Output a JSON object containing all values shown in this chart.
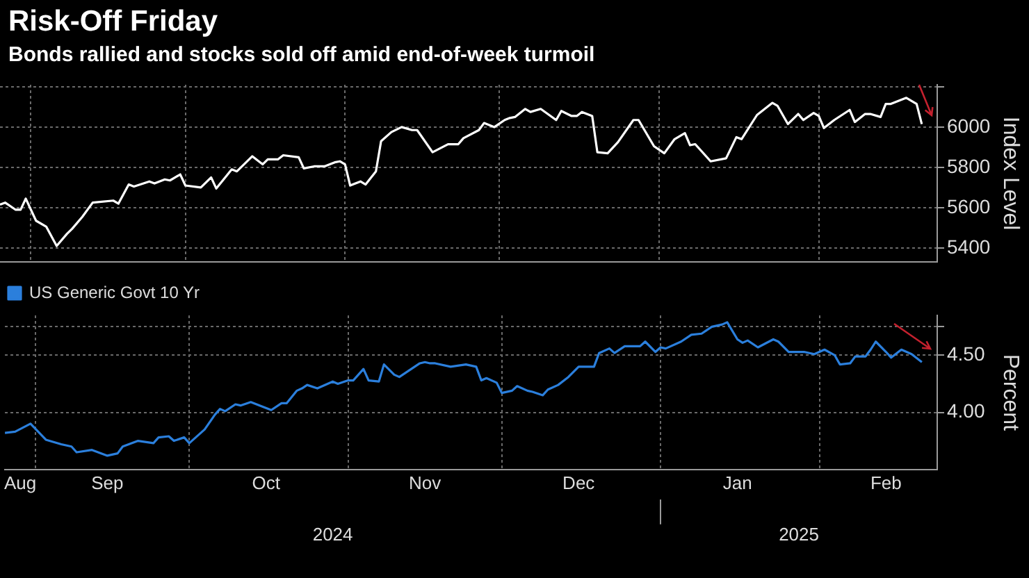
{
  "chart_data": [
    {
      "type": "line",
      "title": "Risk-Off Friday",
      "subtitle": "Bonds rallied and stocks sold off amid end-of-week turmoil",
      "ylabel": "Index Level",
      "grid": true,
      "tick_labels": "y",
      "x": [
        "2024-08-26",
        "2024-08-27",
        "2024-08-29",
        "2024-08-30",
        "2024-08-31",
        "2024-09-02",
        "2024-09-04",
        "2024-09-06",
        "2024-09-08",
        "2024-09-09",
        "2024-09-11",
        "2024-09-13",
        "2024-09-17",
        "2024-09-18",
        "2024-09-20",
        "2024-09-21",
        "2024-09-24",
        "2024-09-25",
        "2024-09-27",
        "2024-09-28",
        "2024-09-30",
        "2024-10-01",
        "2024-10-04",
        "2024-10-06",
        "2024-10-07",
        "2024-10-10",
        "2024-10-11",
        "2024-10-14",
        "2024-10-16",
        "2024-10-17",
        "2024-10-19",
        "2024-10-20",
        "2024-10-23",
        "2024-10-24",
        "2024-10-26",
        "2024-10-28",
        "2024-10-30",
        "2024-10-31",
        "2024-11-01",
        "2024-11-02",
        "2024-11-04",
        "2024-11-05",
        "2024-11-07",
        "2024-11-08",
        "2024-11-10",
        "2024-11-12",
        "2024-11-14",
        "2024-11-15",
        "2024-11-18",
        "2024-11-21",
        "2024-11-23",
        "2024-11-24",
        "2024-11-27",
        "2024-11-28",
        "2024-11-30",
        "2024-12-02",
        "2024-12-03",
        "2024-12-04",
        "2024-12-06",
        "2024-12-07",
        "2024-12-09",
        "2024-12-12",
        "2024-12-13",
        "2024-12-15",
        "2024-12-16",
        "2024-12-17",
        "2024-12-19",
        "2024-12-20",
        "2024-12-22",
        "2024-12-24",
        "2024-12-27",
        "2024-12-28",
        "2024-12-31",
        "2025-01-02",
        "2025-01-04",
        "2025-01-06",
        "2025-01-07",
        "2025-01-08",
        "2025-01-11",
        "2025-01-14",
        "2025-01-16",
        "2025-01-17",
        "2025-01-20",
        "2025-01-23",
        "2025-01-24",
        "2025-01-26",
        "2025-01-28",
        "2025-01-29",
        "2025-01-31",
        "2025-02-01",
        "2025-02-02",
        "2025-02-04",
        "2025-02-07",
        "2025-02-08",
        "2025-02-10",
        "2025-02-11",
        "2025-02-13",
        "2025-02-14",
        "2025-02-15",
        "2025-02-18",
        "2025-02-20",
        "2025-02-21"
      ],
      "series": [
        {
          "color": "#ffffff",
          "values": [
            5615,
            5625,
            5590,
            5590,
            5645,
            5535,
            5505,
            5410,
            5470,
            5495,
            5555,
            5625,
            5635,
            5620,
            5715,
            5705,
            5730,
            5720,
            5740,
            5735,
            5765,
            5710,
            5700,
            5750,
            5695,
            5790,
            5780,
            5855,
            5815,
            5840,
            5840,
            5860,
            5850,
            5795,
            5805,
            5805,
            5825,
            5830,
            5815,
            5710,
            5730,
            5715,
            5780,
            5930,
            5975,
            6000,
            5985,
            5985,
            5875,
            5915,
            5915,
            5945,
            5985,
            6020,
            6000,
            6035,
            6045,
            6050,
            6090,
            6075,
            6090,
            6035,
            6080,
            6055,
            6055,
            6075,
            6055,
            5875,
            5870,
            5925,
            6035,
            6035,
            5905,
            5870,
            5940,
            5970,
            5910,
            5915,
            5830,
            5845,
            5950,
            5940,
            6060,
            6120,
            6105,
            6015,
            6065,
            6035,
            6070,
            6055,
            5995,
            6035,
            6085,
            6025,
            6065,
            6065,
            6050,
            6115,
            6115,
            6145,
            6115,
            6015
          ]
        }
      ],
      "xlim": [
        "2024-08-26",
        "2025-02-24"
      ],
      "xticks": [
        {
          "value": "2024-09-01",
          "label": null
        },
        {
          "value": "2024-10-01",
          "label": null
        },
        {
          "value": "2024-11-01",
          "label": null
        },
        {
          "value": "2024-12-01",
          "label": null
        },
        {
          "value": "2025-01-01",
          "label": null
        },
        {
          "value": "2025-02-01",
          "label": null
        }
      ],
      "ylim": [
        5330,
        6210
      ],
      "yticks": [
        5400,
        5600,
        5800,
        6000,
        {
          "value": 6200,
          "label": null
        }
      ]
    },
    {
      "type": "line",
      "ylabel": "Percent",
      "grid": true,
      "legend": "top left",
      "x2lim": [
        "2024-08-26",
        "2025-02-24"
      ],
      "x2ticks": [
        {
          "value": "2024-10-29",
          "label": "2024"
        },
        {
          "value": "2025-01-01",
          "label": null
        },
        {
          "value": "2025-01-28",
          "label": "2025"
        }
      ],
      "x": [
        "2024-08-26",
        "2024-08-28",
        "2024-08-31",
        "2024-09-03",
        "2024-09-06",
        "2024-09-08",
        "2024-09-09",
        "2024-09-12",
        "2024-09-15",
        "2024-09-17",
        "2024-09-18",
        "2024-09-21",
        "2024-09-24",
        "2024-09-25",
        "2024-09-27",
        "2024-09-28",
        "2024-09-30",
        "2024-10-01",
        "2024-10-04",
        "2024-10-06",
        "2024-10-07",
        "2024-10-08",
        "2024-10-10",
        "2024-10-11",
        "2024-10-13",
        "2024-10-17",
        "2024-10-19",
        "2024-10-20",
        "2024-10-22",
        "2024-10-23",
        "2024-10-24",
        "2024-10-26",
        "2024-10-29",
        "2024-10-30",
        "2024-11-01",
        "2024-11-02",
        "2024-11-04",
        "2024-11-05",
        "2024-11-07",
        "2024-11-08",
        "2024-11-10",
        "2024-11-11",
        "2024-11-15",
        "2024-11-16",
        "2024-11-17",
        "2024-11-18",
        "2024-11-21",
        "2024-11-24",
        "2024-11-26",
        "2024-11-27",
        "2024-11-28",
        "2024-11-30",
        "2024-12-01",
        "2024-12-03",
        "2024-12-04",
        "2024-12-06",
        "2024-12-07",
        "2024-12-09",
        "2024-12-10",
        "2024-12-12",
        "2024-12-14",
        "2024-12-16",
        "2024-12-19",
        "2024-12-20",
        "2024-12-22",
        "2024-12-23",
        "2024-12-25",
        "2024-12-28",
        "2024-12-29",
        "2024-12-31",
        "2025-01-01",
        "2025-01-02",
        "2025-01-05",
        "2025-01-07",
        "2025-01-09",
        "2025-01-11",
        "2025-01-13",
        "2025-01-14",
        "2025-01-16",
        "2025-01-17",
        "2025-01-18",
        "2025-01-20",
        "2025-01-23",
        "2025-01-24",
        "2025-01-26",
        "2025-01-29",
        "2025-01-31",
        "2025-02-02",
        "2025-02-04",
        "2025-02-05",
        "2025-02-07",
        "2025-02-08",
        "2025-02-10",
        "2025-02-11",
        "2025-02-12",
        "2025-02-14",
        "2025-02-15",
        "2025-02-17",
        "2025-02-19",
        "2025-02-21"
      ],
      "series": [
        {
          "name": "US Generic Govt 10 Yr",
          "color": "#2b7fdc",
          "values": [
            3.82,
            3.83,
            3.9,
            3.76,
            3.72,
            3.7,
            3.65,
            3.67,
            3.62,
            3.64,
            3.7,
            3.75,
            3.73,
            3.78,
            3.79,
            3.75,
            3.78,
            3.73,
            3.85,
            3.98,
            4.03,
            4.01,
            4.07,
            4.06,
            4.09,
            4.02,
            4.08,
            4.08,
            4.19,
            4.21,
            4.24,
            4.21,
            4.27,
            4.25,
            4.28,
            4.28,
            4.38,
            4.28,
            4.27,
            4.42,
            4.33,
            4.31,
            4.43,
            4.44,
            4.43,
            4.43,
            4.4,
            4.42,
            4.4,
            4.28,
            4.3,
            4.26,
            4.17,
            4.19,
            4.23,
            4.19,
            4.18,
            4.15,
            4.2,
            4.24,
            4.31,
            4.4,
            4.4,
            4.52,
            4.56,
            4.52,
            4.58,
            4.58,
            4.62,
            4.53,
            4.57,
            4.56,
            4.62,
            4.68,
            4.69,
            4.75,
            4.77,
            4.79,
            4.64,
            4.61,
            4.63,
            4.57,
            4.64,
            4.62,
            4.53,
            4.53,
            4.51,
            4.55,
            4.5,
            4.42,
            4.43,
            4.49,
            4.49,
            4.55,
            4.62,
            4.53,
            4.48,
            4.55,
            4.51,
            4.44
          ]
        }
      ],
      "xlim": [
        "2024-08-26",
        "2025-02-24"
      ],
      "xticks": [
        {
          "value": "2024-08-29",
          "label": "Aug"
        },
        {
          "value": "2024-09-01",
          "label": null
        },
        {
          "value": "2024-09-15",
          "label": "Sep"
        },
        {
          "value": "2024-10-01",
          "label": null
        },
        {
          "value": "2024-10-16",
          "label": "Oct"
        },
        {
          "value": "2024-11-01",
          "label": null
        },
        {
          "value": "2024-11-16",
          "label": "Nov"
        },
        {
          "value": "2024-12-01",
          "label": null
        },
        {
          "value": "2024-12-16",
          "label": "Dec"
        },
        {
          "value": "2025-01-01",
          "label": null
        },
        {
          "value": "2025-01-16",
          "label": "Jan"
        },
        {
          "value": "2025-02-01",
          "label": null
        },
        {
          "value": "2025-02-14",
          "label": "Feb"
        }
      ],
      "ylim": [
        3.5,
        4.85
      ],
      "yticks": [
        {
          "value": 4.0,
          "label": "4.00"
        },
        {
          "value": 4.5,
          "label": "4.50"
        },
        {
          "value": 4.75,
          "label": null
        }
      ]
    }
  ]
}
